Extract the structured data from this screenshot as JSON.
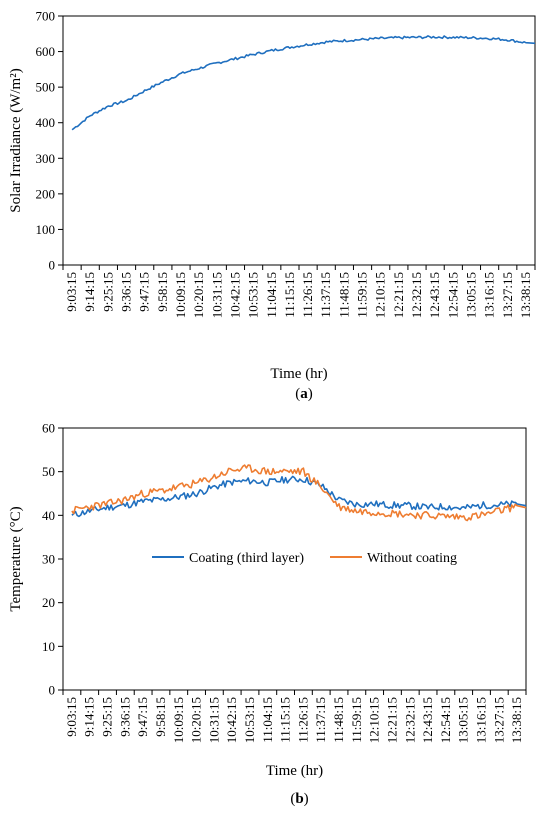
{
  "colors": {
    "blue": "#1f6fbf",
    "orange": "#ee7d31",
    "axis": "#000000"
  },
  "chart_data": [
    {
      "type": "line",
      "panel_label": "(a)",
      "panel_letter": "a",
      "xlabel": "Time (hr)",
      "ylabel": "Solar Irradiance (W/m²)",
      "ylim": [
        0,
        700
      ],
      "yticks": [
        0,
        100,
        200,
        300,
        400,
        500,
        600,
        700
      ],
      "categories": [
        "9:03:15",
        "9:14:15",
        "9:25:15",
        "9:36:15",
        "9:47:15",
        "9:58:15",
        "10:09:15",
        "10:20:15",
        "10:31:15",
        "10:42:15",
        "10:53:15",
        "11:04:15",
        "11:15:15",
        "11:26:15",
        "11:37:15",
        "11:48:15",
        "11:59:15",
        "12:10:15",
        "12:21:15",
        "12:32:15",
        "12:43:15",
        "12:54:15",
        "13:05:15",
        "13:16:15",
        "13:27:15",
        "13:38:15"
      ],
      "grid": false,
      "series": [
        {
          "name": "",
          "color": "#1f6fbf",
          "values": [
            380,
            420,
            447,
            462,
            490,
            515,
            538,
            553,
            568,
            580,
            592,
            603,
            612,
            620,
            627,
            631,
            634,
            637,
            639,
            640,
            641,
            640,
            639,
            637,
            633,
            625
          ]
        }
      ]
    },
    {
      "type": "line",
      "panel_label": "(b)",
      "panel_letter": "b",
      "xlabel": "Time (hr)",
      "ylabel": "Temperature (°C)",
      "ylim": [
        0,
        60
      ],
      "yticks": [
        0,
        10,
        20,
        30,
        40,
        50,
        60
      ],
      "categories": [
        "9:03:15",
        "9:14:15",
        "9:25:15",
        "9:36:15",
        "9:47:15",
        "9:58:15",
        "10:09:15",
        "10:20:15",
        "10:31:15",
        "10:42:15",
        "10:53:15",
        "11:04:15",
        "11:15:15",
        "11:26:15",
        "11:37:15",
        "11:48:15",
        "11:59:15",
        "12:10:15",
        "12:21:15",
        "12:32:15",
        "12:43:15",
        "12:54:15",
        "13:05:15",
        "13:16:15",
        "13:27:15",
        "13:38:15"
      ],
      "grid": false,
      "legend": "middle",
      "series": [
        {
          "name": "Coating (third layer)",
          "color": "#1f6fbf",
          "values": [
            40.0,
            41.0,
            41.8,
            42.3,
            43.2,
            43.6,
            44.2,
            45.0,
            46.5,
            47.6,
            47.9,
            47.5,
            48.2,
            48.3,
            46.8,
            43.5,
            42.5,
            42.6,
            42.3,
            42.2,
            41.8,
            42.0,
            41.6,
            42.3,
            42.4,
            42.6
          ]
        },
        {
          "name": "Without coating",
          "color": "#ee7d31",
          "values": [
            41.0,
            42.0,
            42.6,
            43.6,
            45.0,
            45.6,
            46.5,
            47.3,
            48.8,
            50.4,
            50.7,
            50.0,
            50.1,
            50.0,
            46.5,
            42.0,
            41.0,
            40.8,
            40.5,
            40.2,
            40.0,
            39.8,
            39.6,
            40.0,
            41.0,
            42.2
          ]
        }
      ]
    }
  ]
}
